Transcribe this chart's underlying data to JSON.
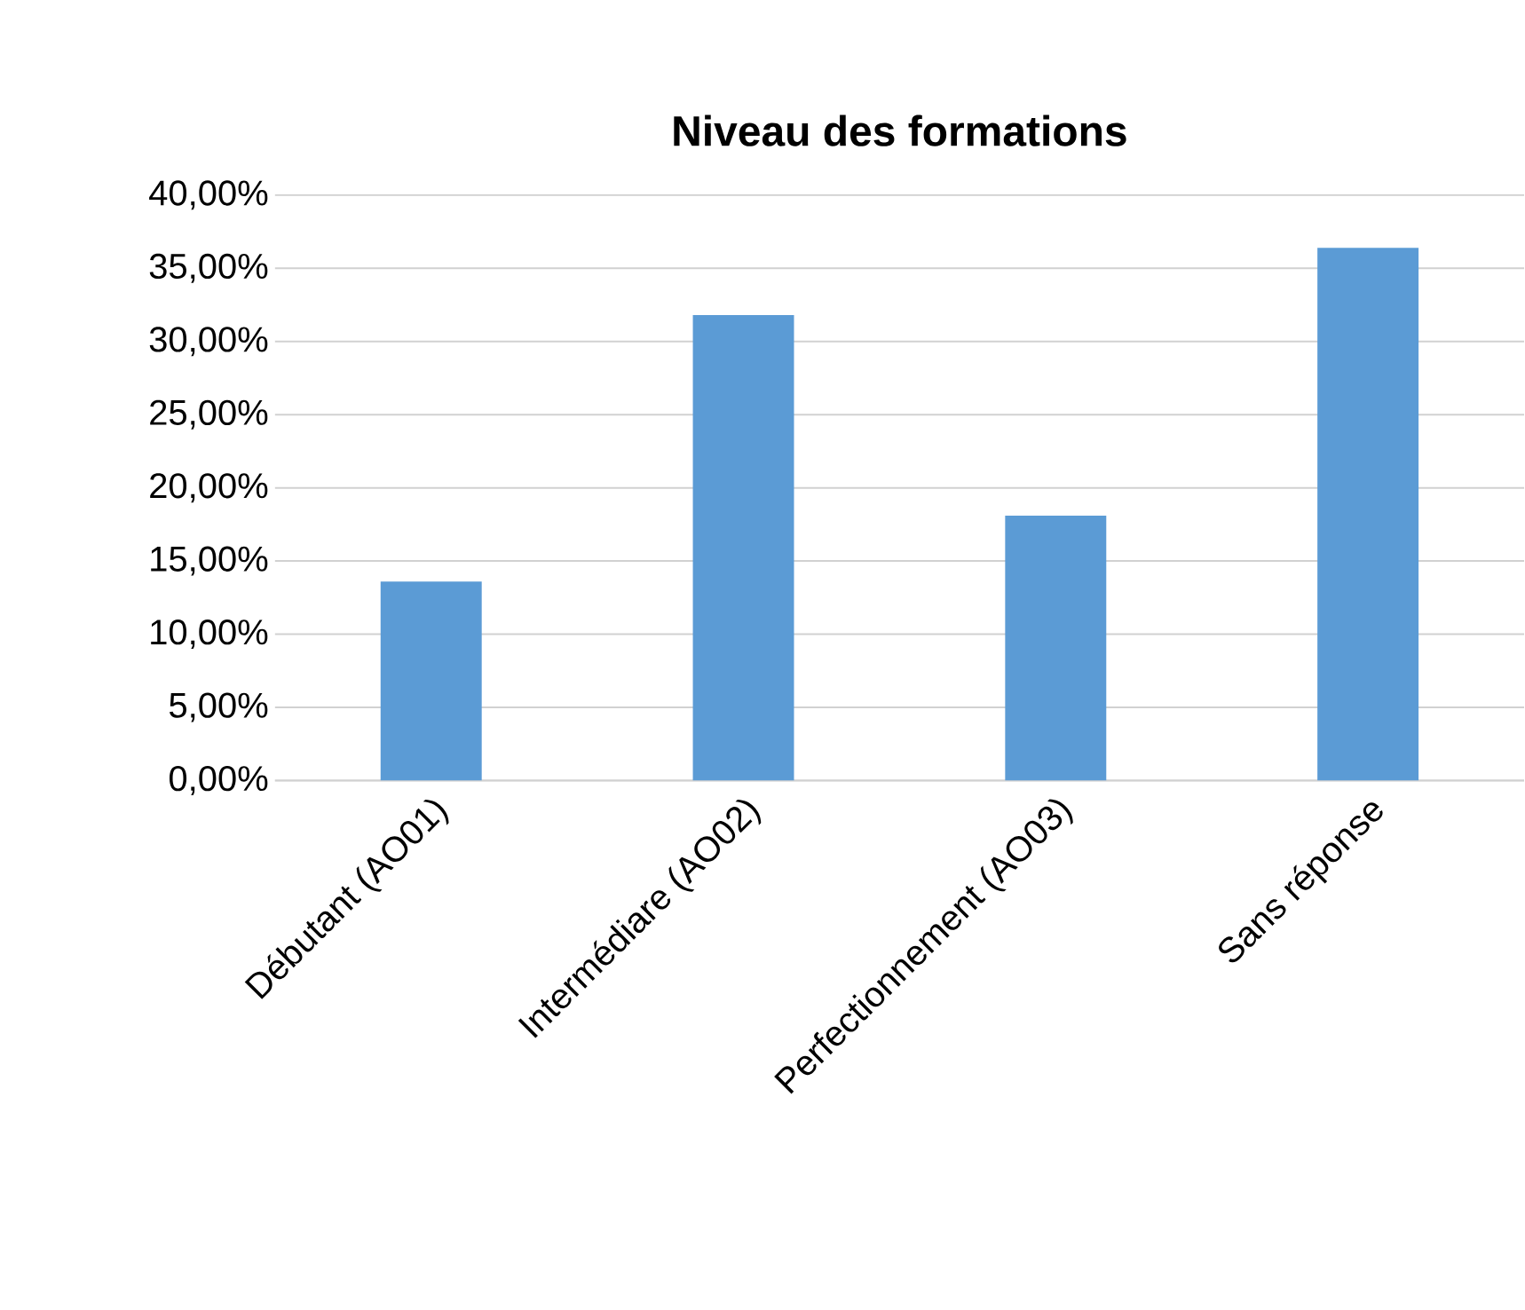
{
  "chart_data": {
    "type": "bar",
    "title": "Niveau des formations",
    "categories": [
      "Débutant (AO01)",
      "Intermédiare (AO02)",
      "Perfectionnement (AO03)",
      "Sans réponse"
    ],
    "values": [
      13.6,
      31.8,
      18.1,
      36.4
    ],
    "color": "#5b9bd5",
    "ylim": [
      0,
      40
    ],
    "yticks": [
      {
        "value": 0,
        "label": "0,00%"
      },
      {
        "value": 5,
        "label": "5,00%"
      },
      {
        "value": 10,
        "label": "10,00%"
      },
      {
        "value": 15,
        "label": "15,00%"
      },
      {
        "value": 20,
        "label": "20,00%"
      },
      {
        "value": 25,
        "label": "25,00%"
      },
      {
        "value": 30,
        "label": "30,00%"
      },
      {
        "value": 35,
        "label": "35,00%"
      },
      {
        "value": 40,
        "label": "40,00%"
      }
    ],
    "grid": "y"
  }
}
